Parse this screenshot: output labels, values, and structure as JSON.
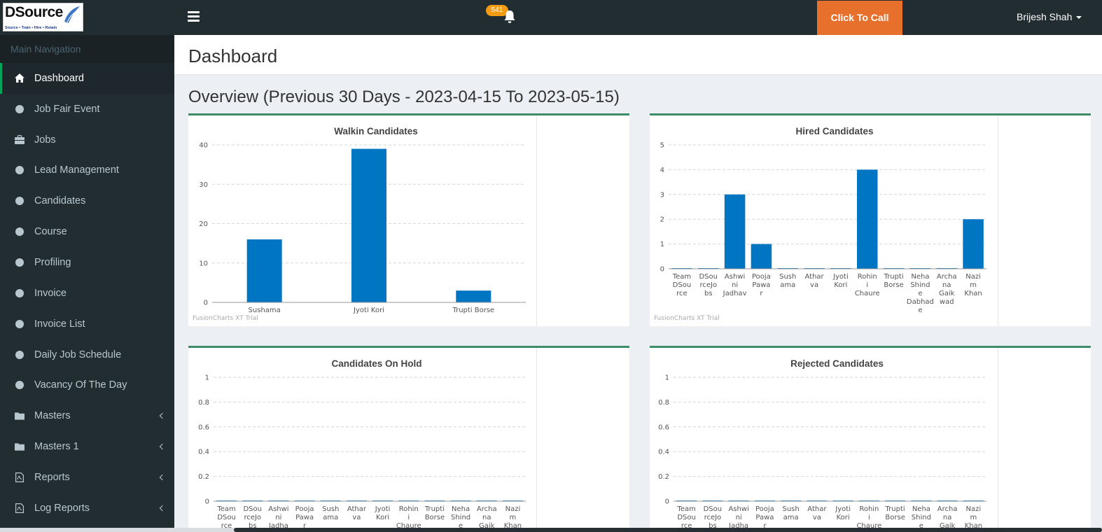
{
  "app": {
    "logo_text": "DSource",
    "logo_tagline": "Source • Train • Hire • Retain",
    "notification_count": "541",
    "call_button": "Click To Call",
    "user_name": "Brijesh Shah"
  },
  "sidebar": {
    "header": "Main Navigation",
    "items": [
      {
        "label": "Dashboard",
        "icon": "home-icon",
        "active": true,
        "submenu": false
      },
      {
        "label": "Job Fair Event",
        "icon": "circle-icon",
        "submenu": false
      },
      {
        "label": "Jobs",
        "icon": "briefcase-icon",
        "submenu": false
      },
      {
        "label": "Lead Management",
        "icon": "circle-icon",
        "submenu": false
      },
      {
        "label": "Candidates",
        "icon": "circle-icon",
        "submenu": false
      },
      {
        "label": "Course",
        "icon": "circle-icon",
        "submenu": false
      },
      {
        "label": "Profiling",
        "icon": "circle-icon",
        "submenu": false
      },
      {
        "label": "Invoice",
        "icon": "circle-icon",
        "submenu": false
      },
      {
        "label": "Invoice List",
        "icon": "circle-icon",
        "submenu": false
      },
      {
        "label": "Daily Job Schedule",
        "icon": "circle-icon",
        "submenu": false
      },
      {
        "label": "Vacancy Of The Day",
        "icon": "circle-icon",
        "submenu": false
      },
      {
        "label": "Masters",
        "icon": "folder-icon",
        "submenu": true
      },
      {
        "label": "Masters 1",
        "icon": "folder-icon",
        "submenu": true
      },
      {
        "label": "Reports",
        "icon": "file-pdf-icon",
        "submenu": true
      },
      {
        "label": "Log Reports",
        "icon": "file-pdf-icon",
        "submenu": true
      }
    ]
  },
  "main": {
    "page_title": "Dashboard",
    "overview_title": "Overview (Previous 30 Days - 2023-04-15 To 2023-05-15)",
    "trial_text": "FusionCharts XT Trial"
  },
  "chart_data": [
    {
      "type": "bar",
      "title": "Walkin Candidates",
      "categories": [
        [
          "Sushama"
        ],
        [
          "Jyoti Kori"
        ],
        [
          "Trupti Borse"
        ]
      ],
      "values": [
        16,
        39,
        3
      ],
      "ylim": [
        0,
        40
      ],
      "yticks": [
        "0",
        "10",
        "20",
        "30",
        "40"
      ],
      "color": "#0075c2",
      "grid": true
    },
    {
      "type": "bar",
      "title": "Hired Candidates",
      "categories": [
        [
          "Team",
          "DSou",
          "rce"
        ],
        [
          "DSou",
          "rceJo",
          "bs"
        ],
        [
          "Ashwi",
          "ni",
          "Jadhav"
        ],
        [
          "Pooja",
          "Pawa",
          "r"
        ],
        [
          "Sush",
          "ama"
        ],
        [
          "Athar",
          "va"
        ],
        [
          "Jyoti",
          "Kori"
        ],
        [
          "Rohin",
          "i",
          "Chaure"
        ],
        [
          "Trupti",
          "Borse"
        ],
        [
          "Neha",
          "Shind",
          "e",
          "Dabhad",
          "e"
        ],
        [
          "Archa",
          "na",
          "Gaik",
          "wad"
        ],
        [
          "Nazi",
          "m",
          "Khan"
        ]
      ],
      "values": [
        0,
        0,
        3,
        1,
        0,
        0,
        0,
        4,
        0,
        0,
        0,
        2
      ],
      "ylim": [
        0,
        5
      ],
      "yticks": [
        "0",
        "1",
        "2",
        "3",
        "4",
        "5"
      ],
      "color": "#0075c2",
      "grid": true
    },
    {
      "type": "bar",
      "title": "Candidates On Hold",
      "categories": [
        [
          "Team",
          "DSou",
          "rce"
        ],
        [
          "DSou",
          "rceJo",
          "bs"
        ],
        [
          "Ashwi",
          "ni",
          "Jadha"
        ],
        [
          "Pooja",
          "Pawa",
          "r"
        ],
        [
          "Sush",
          "ama"
        ],
        [
          "Athar",
          "va"
        ],
        [
          "Jyoti",
          "Kori"
        ],
        [
          "Rohin",
          "i",
          "Chaure"
        ],
        [
          "Trupti",
          "Borse"
        ],
        [
          "Neha",
          "Shind",
          "e"
        ],
        [
          "Archa",
          "na",
          "Gaik"
        ],
        [
          "Nazi",
          "m",
          "Khan"
        ]
      ],
      "values": [
        0,
        0,
        0,
        0,
        0,
        0,
        0,
        0,
        0,
        0,
        0,
        0
      ],
      "ylim": [
        0,
        1
      ],
      "yticks": [
        "0",
        "0.2",
        "0.4",
        "0.6",
        "0.8",
        "1"
      ],
      "color": "#0075c2",
      "grid": true
    },
    {
      "type": "bar",
      "title": "Rejected Candidates",
      "categories": [
        [
          "Team",
          "DSou",
          "rce"
        ],
        [
          "DSou",
          "rceJo",
          "bs"
        ],
        [
          "Ashwi",
          "ni",
          "Jadha"
        ],
        [
          "Pooja",
          "Pawa",
          "r"
        ],
        [
          "Sush",
          "ama"
        ],
        [
          "Athar",
          "va"
        ],
        [
          "Jyoti",
          "Kori"
        ],
        [
          "Rohin",
          "i",
          "Chaure"
        ],
        [
          "Trupti",
          "Borse"
        ],
        [
          "Neha",
          "Shind",
          "e"
        ],
        [
          "Archa",
          "na",
          "Gaik"
        ],
        [
          "Nazi",
          "m",
          "Khan"
        ]
      ],
      "values": [
        0,
        0,
        0,
        0,
        0,
        0,
        0,
        0,
        0,
        0,
        0,
        0
      ],
      "ylim": [
        0,
        1
      ],
      "yticks": [
        "0",
        "0.2",
        "0.4",
        "0.6",
        "0.8",
        "1"
      ],
      "color": "#0075c2",
      "grid": true
    }
  ]
}
